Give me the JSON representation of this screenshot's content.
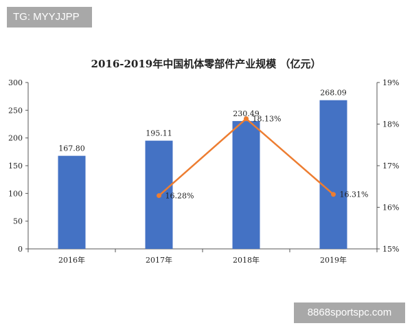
{
  "watermark_top": "TG: MYYJJPP",
  "watermark_bottom": "8868sportspc.com",
  "chart_data": {
    "type": "bar",
    "title": "2016-2019年中国机体零部件产业规模 （亿元）",
    "categories": [
      "2016年",
      "2017年",
      "2018年",
      "2019年"
    ],
    "series": [
      {
        "values": [
          167.8,
          195.11,
          230.49,
          268.09
        ],
        "labels": [
          "167.80",
          "195.11",
          "230.49",
          "268.09"
        ],
        "axis": "left",
        "color": "#4472c4"
      },
      {
        "type": "line",
        "values": [
          null,
          16.28,
          18.13,
          16.31
        ],
        "labels": [
          "",
          "16.28%",
          "18.13%",
          "16.31%"
        ],
        "axis": "right",
        "color": "#ed7d31"
      }
    ],
    "y_left": {
      "ylim": [
        0,
        300
      ],
      "ticks": [
        "0",
        "50",
        "100",
        "150",
        "200",
        "250",
        "300"
      ]
    },
    "y_right": {
      "ylim": [
        15,
        19
      ],
      "ticks": [
        "15%",
        "16%",
        "17%",
        "18%",
        "19%"
      ]
    },
    "grid": false,
    "legend": "none"
  }
}
